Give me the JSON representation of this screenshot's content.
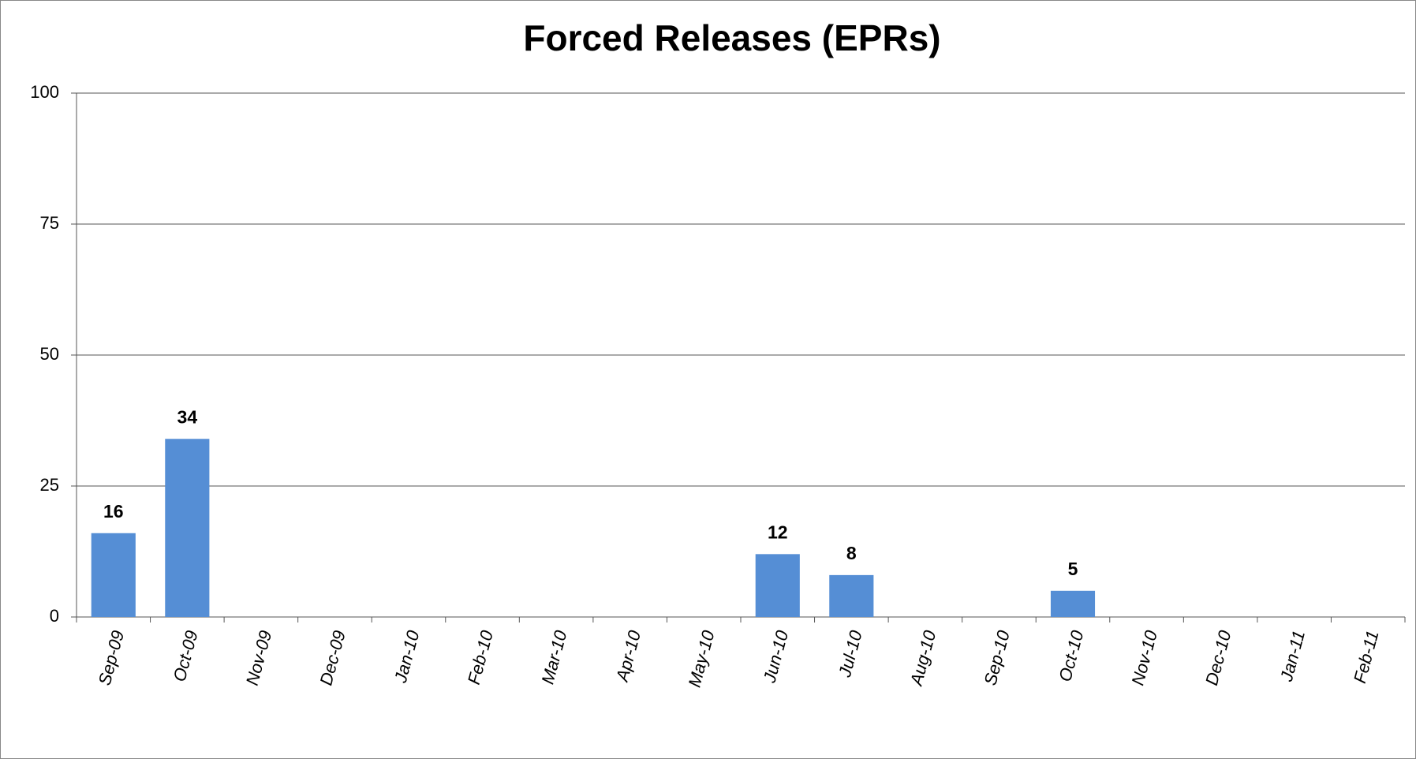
{
  "chart_data": {
    "type": "bar",
    "title": "Forced Releases (EPRs)",
    "categories": [
      "Sep-09",
      "Oct-09",
      "Nov-09",
      "Dec-09",
      "Jan-10",
      "Feb-10",
      "Mar-10",
      "Apr-10",
      "May-10",
      "Jun-10",
      "Jul-10",
      "Aug-10",
      "Sep-10",
      "Oct-10",
      "Nov-10",
      "Dec-10",
      "Jan-11",
      "Feb-11"
    ],
    "values": [
      16,
      34,
      null,
      null,
      null,
      null,
      null,
      null,
      null,
      12,
      8,
      null,
      null,
      5,
      null,
      null,
      null,
      null
    ],
    "color": "#558ed5",
    "ylim": [
      0,
      100
    ],
    "yticks": [
      0,
      25,
      50,
      75,
      100
    ],
    "grid": true
  }
}
